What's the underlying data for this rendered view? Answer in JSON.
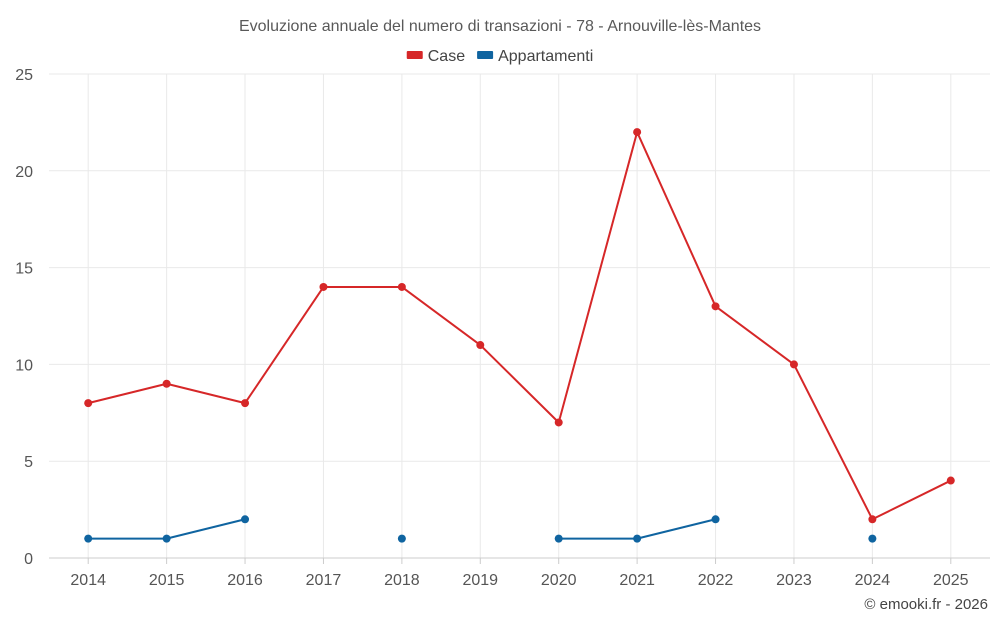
{
  "chart_data": {
    "type": "line",
    "title": "Evoluzione annuale del numero di transazioni - 78 - Arnouville-lès-Mantes",
    "categories": [
      "2014",
      "2015",
      "2016",
      "2017",
      "2018",
      "2019",
      "2020",
      "2021",
      "2022",
      "2023",
      "2024",
      "2025"
    ],
    "ylim": [
      0,
      25
    ],
    "yticks": [
      0,
      5,
      10,
      15,
      20,
      25
    ],
    "grid": true,
    "legend_position": "top-center",
    "series": [
      {
        "name": "Case",
        "color": "#d62728",
        "values": [
          8,
          9,
          8,
          14,
          14,
          11,
          7,
          22,
          13,
          10,
          2,
          4
        ]
      },
      {
        "name": "Appartamenti",
        "color": "#0f64a0",
        "values": [
          1,
          1,
          2,
          null,
          1,
          null,
          1,
          1,
          2,
          null,
          1,
          null
        ]
      }
    ],
    "xlabel": "",
    "ylabel": ""
  },
  "credit": "© emooki.fr - 2026"
}
